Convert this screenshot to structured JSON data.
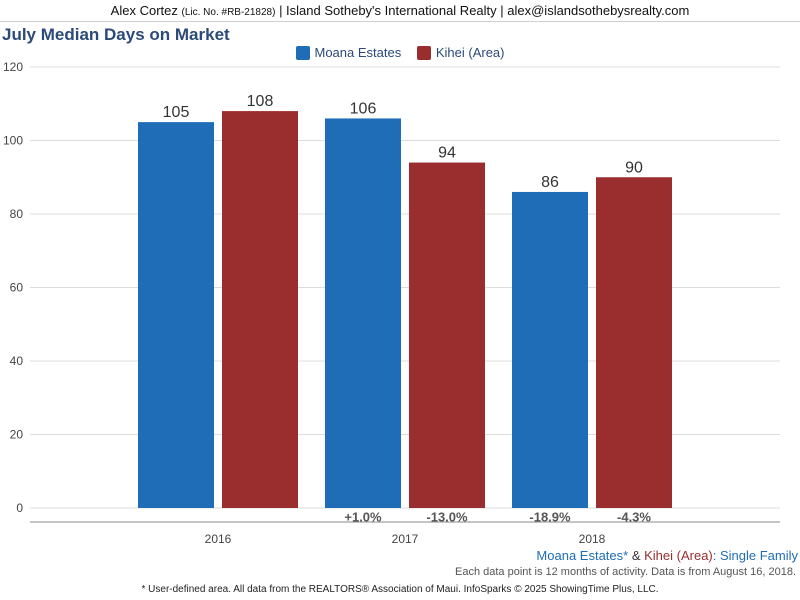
{
  "header": {
    "agent": "Alex Cortez",
    "license": "(Lic. No. #RB-21828)",
    "rest": "| Island Sotheby's International Realty | alex@islandsothebysrealty.com"
  },
  "colors": {
    "series1": "#1f6db7",
    "series2": "#9a2e2e",
    "title": "#2b4a7a"
  },
  "chart_data": {
    "type": "bar",
    "title": "July Median Days on Market",
    "categories": [
      "2016",
      "2017",
      "2018"
    ],
    "series": [
      {
        "name": "Moana Estates",
        "values": [
          105,
          106,
          86
        ],
        "change": [
          "",
          "+1.0%",
          "-18.9%"
        ]
      },
      {
        "name": "Kihei (Area)",
        "values": [
          108,
          94,
          90
        ],
        "change": [
          "",
          "-13.0%",
          "-4.3%"
        ]
      }
    ],
    "ylim": [
      0,
      120
    ],
    "yticks": [
      0,
      20,
      40,
      60,
      80,
      100,
      120
    ],
    "grid": true,
    "legend": "top-center"
  },
  "footer": {
    "area1": "Moana Estates*",
    "amp": " & ",
    "area2": "Kihei (Area)",
    "segment": ": Single Family",
    "note": "Each data point is 12 months of activity. Data is from August 16, 2018.",
    "source": "* User-defined area. All data from the REALTORS® Association of Maui. InfoSparks © 2025 ShowingTime Plus, LLC."
  }
}
